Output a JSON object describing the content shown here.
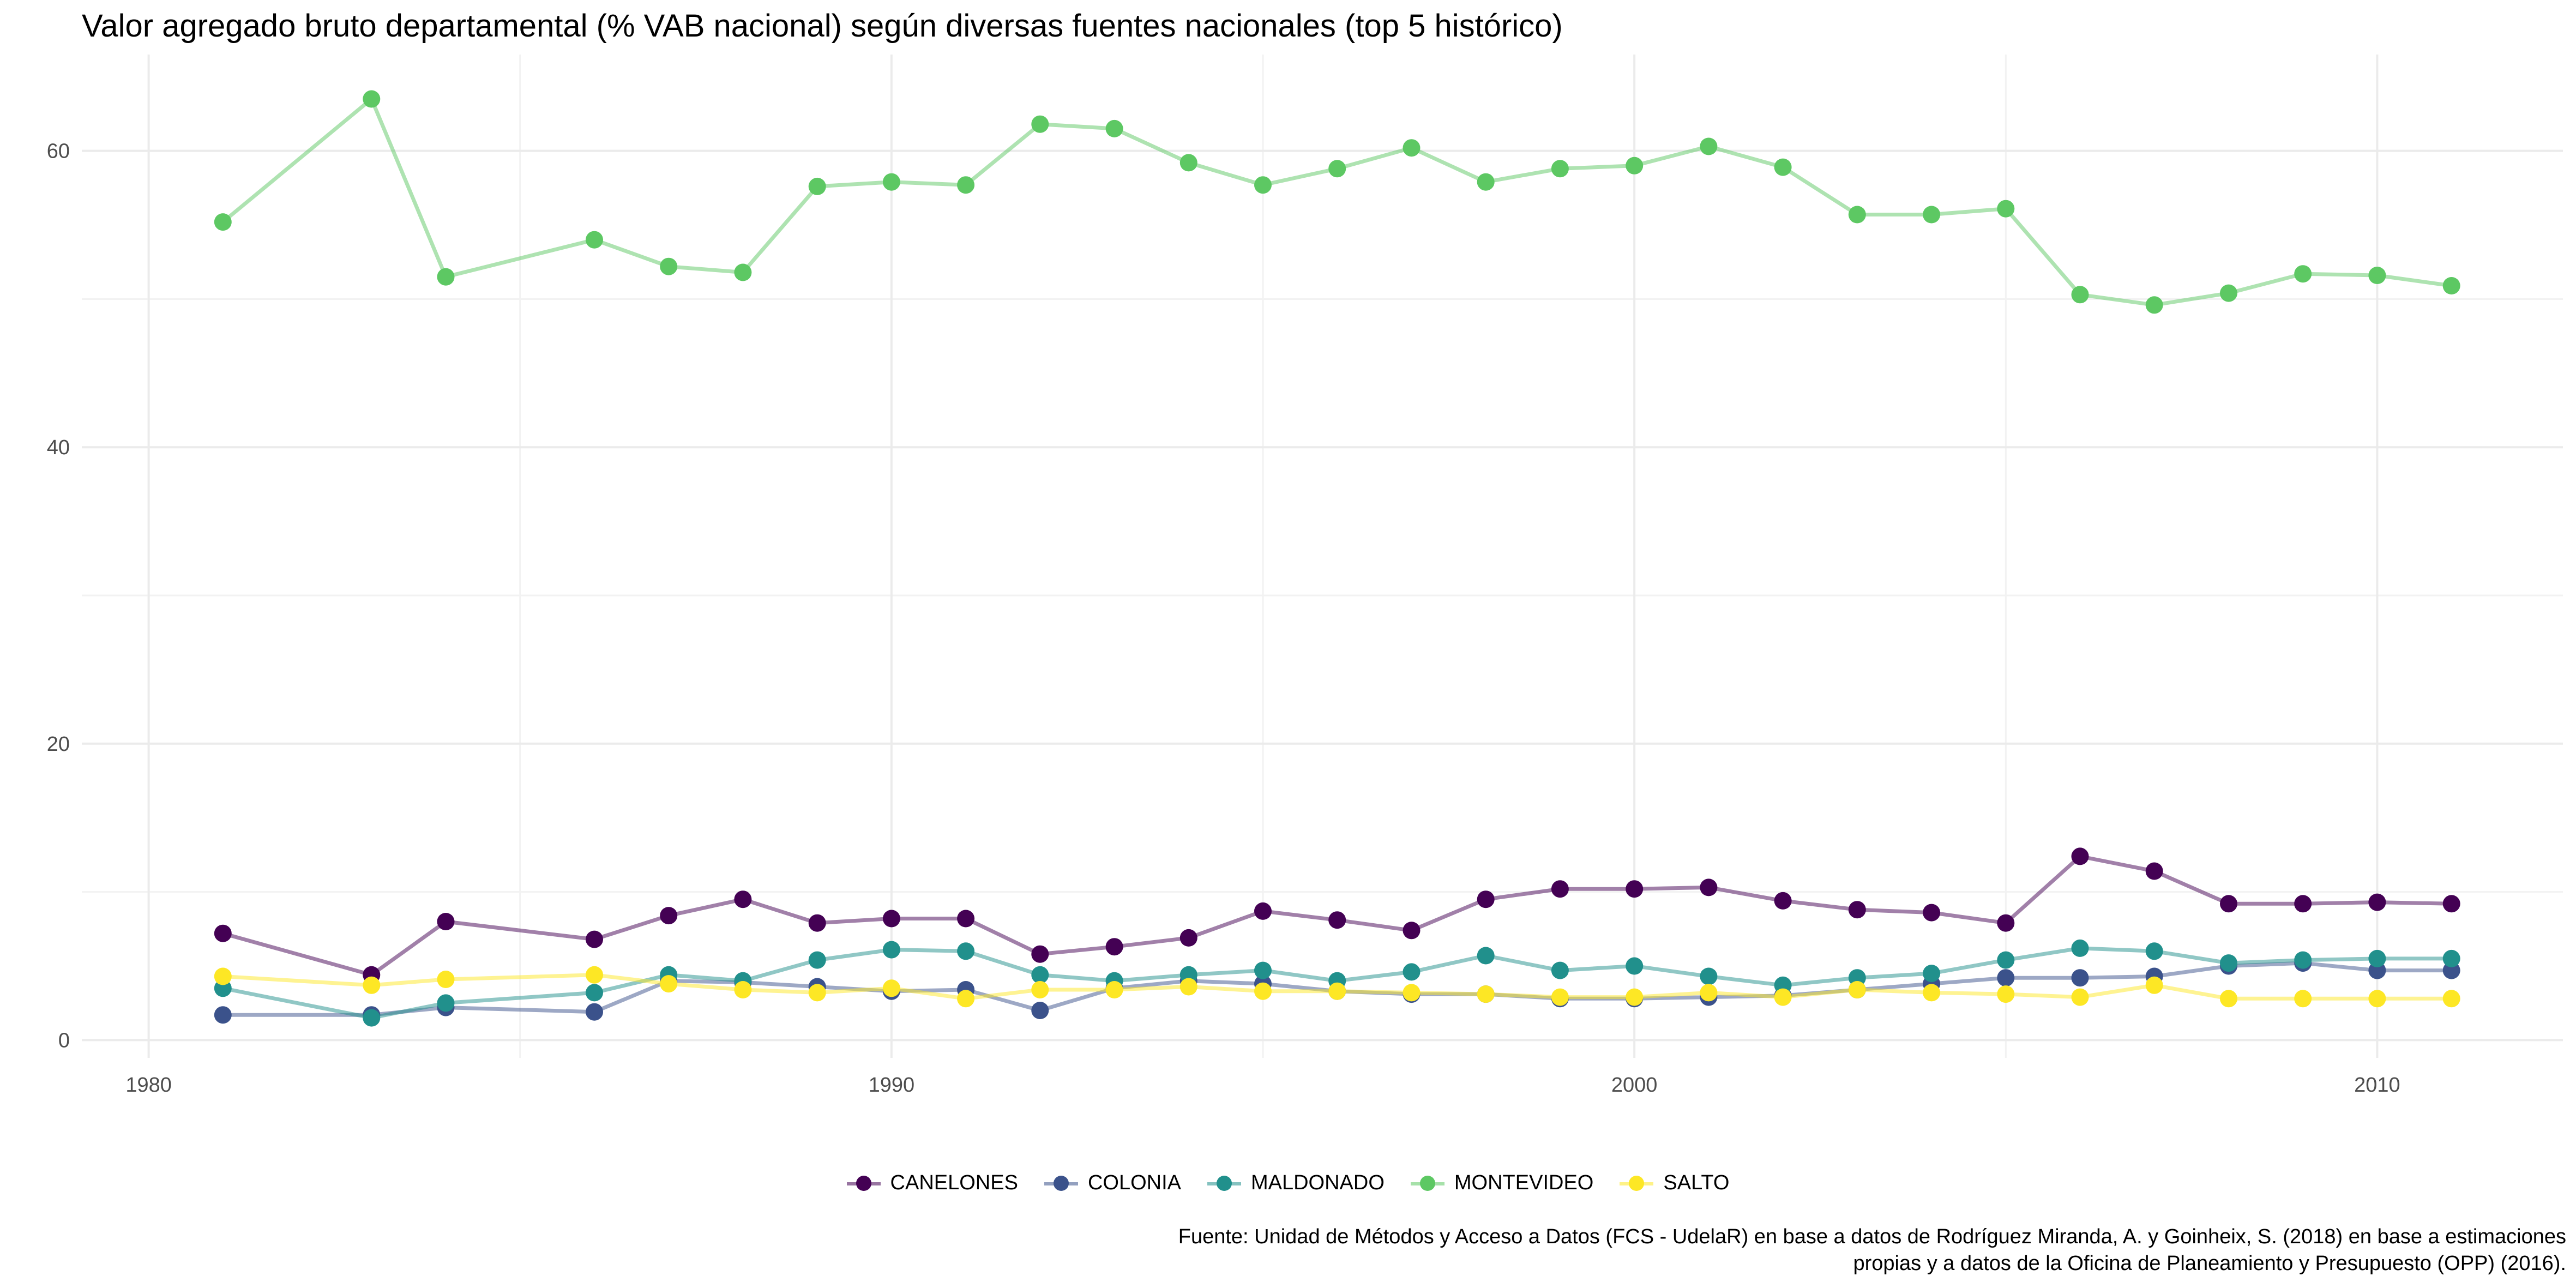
{
  "chart_data": {
    "type": "line",
    "title": "Valor agregado bruto departamental (% VAB nacional) según diversas fuentes nacionales (top 5 histórico)",
    "caption": "Fuente: Unidad de Métodos y Acceso a Datos (FCS - UdelaR) en base a datos de Rodríguez Miranda, A. y Goinheix, S. (2018) en base a estimaciones propias y a datos de la Oficina de Planeamiento y Presupuesto (OPP) (2016).",
    "xlabel": "",
    "ylabel": "",
    "xlim": [
      1979.1,
      2012.5
    ],
    "ylim": [
      -1.2,
      66.5
    ],
    "xticks": [
      1980,
      1990,
      2000,
      2010
    ],
    "yticks": [
      0,
      20,
      40,
      60
    ],
    "grid": true,
    "legend_position": "bottom",
    "series": [
      {
        "name": "CANELONES",
        "color": "#440154",
        "points": [
          [
            1981,
            7.2
          ],
          [
            1983,
            4.4
          ],
          [
            1984,
            8.0
          ],
          [
            1986,
            6.8
          ],
          [
            1987,
            8.4
          ],
          [
            1988,
            9.5
          ],
          [
            1989,
            7.9
          ],
          [
            1990,
            8.2
          ],
          [
            1991,
            8.2
          ],
          [
            1992,
            5.8
          ],
          [
            1993,
            6.3
          ],
          [
            1994,
            6.9
          ],
          [
            1995,
            8.7
          ],
          [
            1996,
            8.1
          ],
          [
            1997,
            7.4
          ],
          [
            1998,
            9.5
          ],
          [
            1999,
            10.2
          ],
          [
            2000,
            10.2
          ],
          [
            2001,
            10.3
          ],
          [
            2002,
            9.4
          ],
          [
            2003,
            8.8
          ],
          [
            2004,
            8.6
          ],
          [
            2005,
            7.9
          ],
          [
            2006,
            12.4
          ],
          [
            2007,
            11.4
          ],
          [
            2008,
            9.2
          ],
          [
            2009,
            9.2
          ],
          [
            2010,
            9.3
          ],
          [
            2011,
            9.2
          ]
        ]
      },
      {
        "name": "COLONIA",
        "color": "#3b528b",
        "points": [
          [
            1981,
            1.7
          ],
          [
            1983,
            1.7
          ],
          [
            1984,
            2.2
          ],
          [
            1986,
            1.9
          ],
          [
            1987,
            4.0
          ],
          [
            1988,
            3.9
          ],
          [
            1989,
            3.6
          ],
          [
            1990,
            3.3
          ],
          [
            1991,
            3.4
          ],
          [
            1992,
            2.0
          ],
          [
            1993,
            3.5
          ],
          [
            1994,
            4.0
          ],
          [
            1995,
            3.8
          ],
          [
            1996,
            3.3
          ],
          [
            1997,
            3.1
          ],
          [
            1998,
            3.1
          ],
          [
            1999,
            2.8
          ],
          [
            2000,
            2.8
          ],
          [
            2001,
            2.9
          ],
          [
            2002,
            3.0
          ],
          [
            2003,
            3.4
          ],
          [
            2004,
            3.8
          ],
          [
            2005,
            4.2
          ],
          [
            2006,
            4.2
          ],
          [
            2007,
            4.3
          ],
          [
            2008,
            5.0
          ],
          [
            2009,
            5.2
          ],
          [
            2010,
            4.7
          ],
          [
            2011,
            4.7
          ]
        ]
      },
      {
        "name": "MALDONADO",
        "color": "#21908c",
        "points": [
          [
            1981,
            3.5
          ],
          [
            1983,
            1.5
          ],
          [
            1984,
            2.5
          ],
          [
            1986,
            3.2
          ],
          [
            1987,
            4.4
          ],
          [
            1988,
            4.0
          ],
          [
            1989,
            5.4
          ],
          [
            1990,
            6.1
          ],
          [
            1991,
            6.0
          ],
          [
            1992,
            4.4
          ],
          [
            1993,
            4.0
          ],
          [
            1994,
            4.4
          ],
          [
            1995,
            4.7
          ],
          [
            1996,
            4.0
          ],
          [
            1997,
            4.6
          ],
          [
            1998,
            5.7
          ],
          [
            1999,
            4.7
          ],
          [
            2000,
            5.0
          ],
          [
            2001,
            4.3
          ],
          [
            2002,
            3.7
          ],
          [
            2003,
            4.2
          ],
          [
            2004,
            4.5
          ],
          [
            2005,
            5.4
          ],
          [
            2006,
            6.2
          ],
          [
            2007,
            6.0
          ],
          [
            2008,
            5.2
          ],
          [
            2009,
            5.4
          ],
          [
            2010,
            5.5
          ],
          [
            2011,
            5.5
          ]
        ]
      },
      {
        "name": "MONTEVIDEO",
        "color": "#5dc863",
        "points": [
          [
            1981,
            55.2
          ],
          [
            1983,
            63.5
          ],
          [
            1984,
            51.5
          ],
          [
            1986,
            54.0
          ],
          [
            1987,
            52.2
          ],
          [
            1988,
            51.8
          ],
          [
            1989,
            57.6
          ],
          [
            1990,
            57.9
          ],
          [
            1991,
            57.7
          ],
          [
            1992,
            61.8
          ],
          [
            1993,
            61.5
          ],
          [
            1994,
            59.2
          ],
          [
            1995,
            57.7
          ],
          [
            1996,
            58.8
          ],
          [
            1997,
            60.2
          ],
          [
            1998,
            57.9
          ],
          [
            1999,
            58.8
          ],
          [
            2000,
            59.0
          ],
          [
            2001,
            60.3
          ],
          [
            2002,
            58.9
          ],
          [
            2003,
            55.7
          ],
          [
            2004,
            55.7
          ],
          [
            2005,
            56.1
          ],
          [
            2006,
            50.3
          ],
          [
            2007,
            49.6
          ],
          [
            2008,
            50.4
          ],
          [
            2009,
            51.7
          ],
          [
            2010,
            51.6
          ],
          [
            2011,
            50.9
          ]
        ]
      },
      {
        "name": "SALTO",
        "color": "#fde725",
        "points": [
          [
            1981,
            4.3
          ],
          [
            1983,
            3.7
          ],
          [
            1984,
            4.1
          ],
          [
            1986,
            4.4
          ],
          [
            1987,
            3.8
          ],
          [
            1988,
            3.4
          ],
          [
            1989,
            3.2
          ],
          [
            1990,
            3.5
          ],
          [
            1991,
            2.8
          ],
          [
            1992,
            3.4
          ],
          [
            1993,
            3.4
          ],
          [
            1994,
            3.6
          ],
          [
            1995,
            3.3
          ],
          [
            1996,
            3.3
          ],
          [
            1997,
            3.2
          ],
          [
            1998,
            3.1
          ],
          [
            1999,
            2.9
          ],
          [
            2000,
            2.9
          ],
          [
            2001,
            3.2
          ],
          [
            2002,
            2.9
          ],
          [
            2003,
            3.4
          ],
          [
            2004,
            3.2
          ],
          [
            2005,
            3.1
          ],
          [
            2006,
            2.9
          ],
          [
            2007,
            3.7
          ],
          [
            2008,
            2.8
          ],
          [
            2009,
            2.8
          ],
          [
            2010,
            2.8
          ],
          [
            2011,
            2.8
          ]
        ]
      }
    ]
  }
}
